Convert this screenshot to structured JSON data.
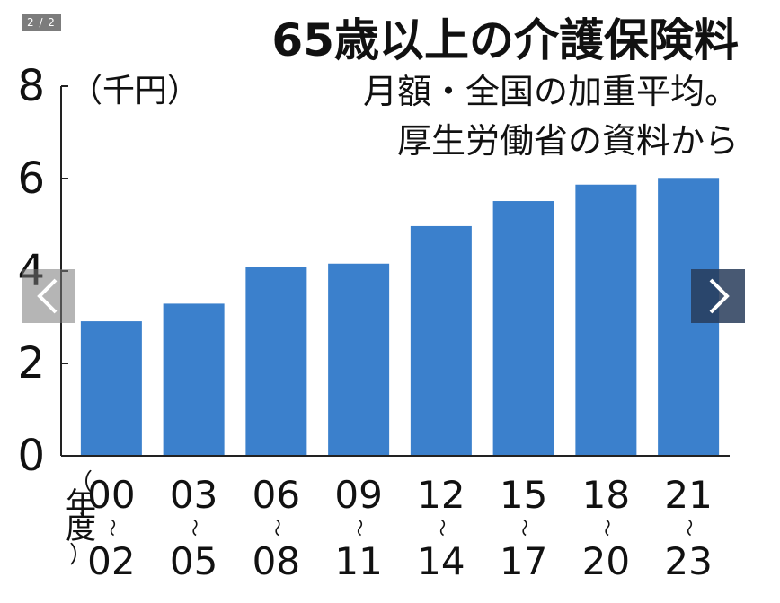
{
  "viewer": {
    "counter": "2 / 2",
    "prev_icon": "chevron-left-icon",
    "next_icon": "chevron-right-icon"
  },
  "chart_data": {
    "type": "bar",
    "title": "65歳以上の介護保険料",
    "subtitle_lines": [
      "月額・全国の加重平均。",
      "厚生労働省の資料から"
    ],
    "ylabel": "（千円）",
    "xlabel": "（年度）",
    "ylim": [
      0,
      8
    ],
    "yticks": [
      "0",
      "2",
      "4",
      "6",
      "8"
    ],
    "categories": [
      {
        "from": "00",
        "to": "02"
      },
      {
        "from": "03",
        "to": "05"
      },
      {
        "from": "06",
        "to": "08"
      },
      {
        "from": "09",
        "to": "11"
      },
      {
        "from": "12",
        "to": "14"
      },
      {
        "from": "15",
        "to": "17"
      },
      {
        "from": "18",
        "to": "20"
      },
      {
        "from": "21",
        "to": "23"
      }
    ],
    "range_mark": "〜",
    "values": [
      2.911,
      3.293,
      4.09,
      4.16,
      4.972,
      5.514,
      5.869,
      6.014
    ],
    "bar_color": "#3b80cc",
    "grid": false
  }
}
